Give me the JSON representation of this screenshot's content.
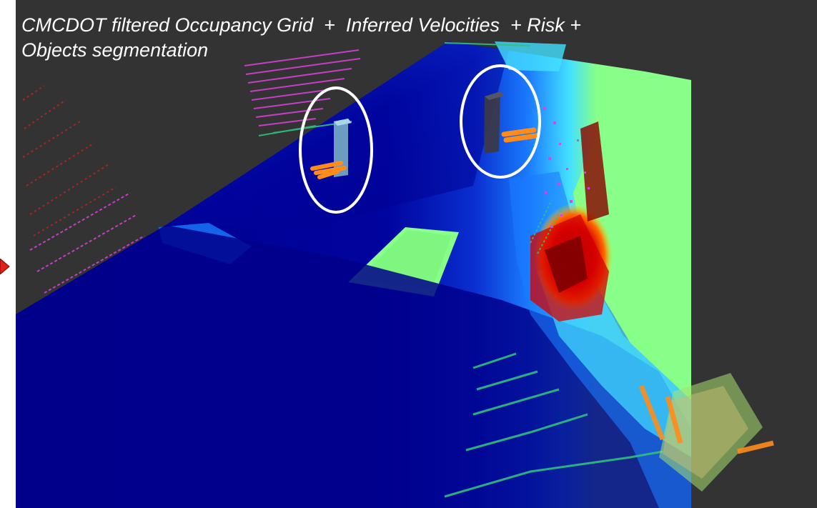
{
  "title": {
    "line1": "CMCDOT filtered Occupancy Grid  +  Inferred Velocities  + Risk +",
    "line2": "Objects segmentation"
  },
  "colors": {
    "background": "#333333",
    "grid_free": "#00008b",
    "grid_mid": "#1565ff",
    "grid_cyan": "#33ddff",
    "grid_green": "#88ff88",
    "risk_red": "#d40000",
    "risk_dark": "#7a0000",
    "lidar_magenta": "#e040e0",
    "lidar_red": "#cc2020",
    "lidar_green": "#30c080",
    "velocity_orange": "#ff8c1a",
    "highlight_circle": "#ffffff"
  },
  "objects": [
    {
      "name": "tracked-object-1",
      "box_color": "#7fb8c8"
    },
    {
      "name": "tracked-object-2",
      "box_color": "#3a3a4a"
    }
  ],
  "icons": [
    "left-arrow-icon"
  ]
}
